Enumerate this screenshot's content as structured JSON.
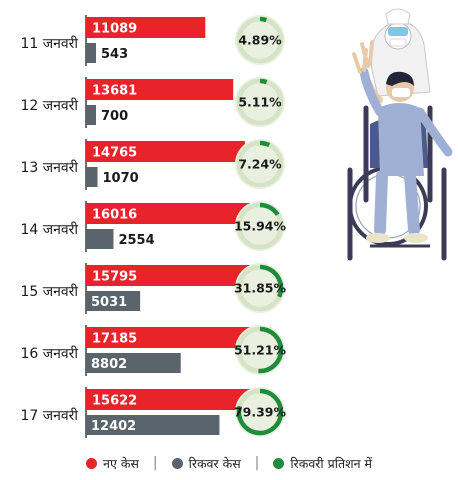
{
  "colors": {
    "new_cases": "#e8232a",
    "recovered": "#59646d",
    "recovery_rate": "#1e8c3a",
    "ring_bg": "#d5e3c6",
    "ring_face": "#e9f0df"
  },
  "chart_data": {
    "type": "bar",
    "orientation": "horizontal",
    "categories": [
      "11 जनवरी",
      "12 जनवरी",
      "13 जनवरी",
      "14 जनवरी",
      "15 जनवरी",
      "16 जनवरी",
      "17 जनवरी"
    ],
    "series": [
      {
        "name": "नए केस",
        "values": [
          11089,
          13681,
          14765,
          16016,
          15795,
          17185,
          15622
        ]
      },
      {
        "name": "रिकवर केस",
        "values": [
          543,
          700,
          1070,
          2554,
          5031,
          8802,
          12402
        ]
      }
    ],
    "recovery_rate": {
      "name": "रिकवरी प्रतिशन में",
      "values": [
        4.89,
        5.11,
        7.24,
        15.94,
        31.85,
        51.21,
        79.39
      ],
      "labels": [
        "4.89%",
        "5.11%",
        "7.24%",
        "15.94%",
        "31.85%",
        "51.21%",
        "79.39%"
      ]
    },
    "value_labels": {
      "new": [
        "11089",
        "13681",
        "14765",
        "16016",
        "15795",
        "17185",
        "15622"
      ],
      "recovered": [
        "543",
        "700",
        "1070",
        "2554",
        "5031",
        "8802",
        "12402"
      ]
    },
    "xlim": [
      0,
      19000
    ],
    "grid": false,
    "legend_position": "bottom"
  },
  "legend": {
    "items": [
      {
        "label": "नए केस",
        "color": "#e8232a"
      },
      {
        "label": "रिकवर केस",
        "color": "#59646d"
      },
      {
        "label": "रिकवरी प्रतिशन में",
        "color": "#1e8c3a"
      }
    ],
    "separator": "|"
  },
  "illustration": {
    "icon": "patient-in-wheelchair-with-doctor-icon"
  }
}
